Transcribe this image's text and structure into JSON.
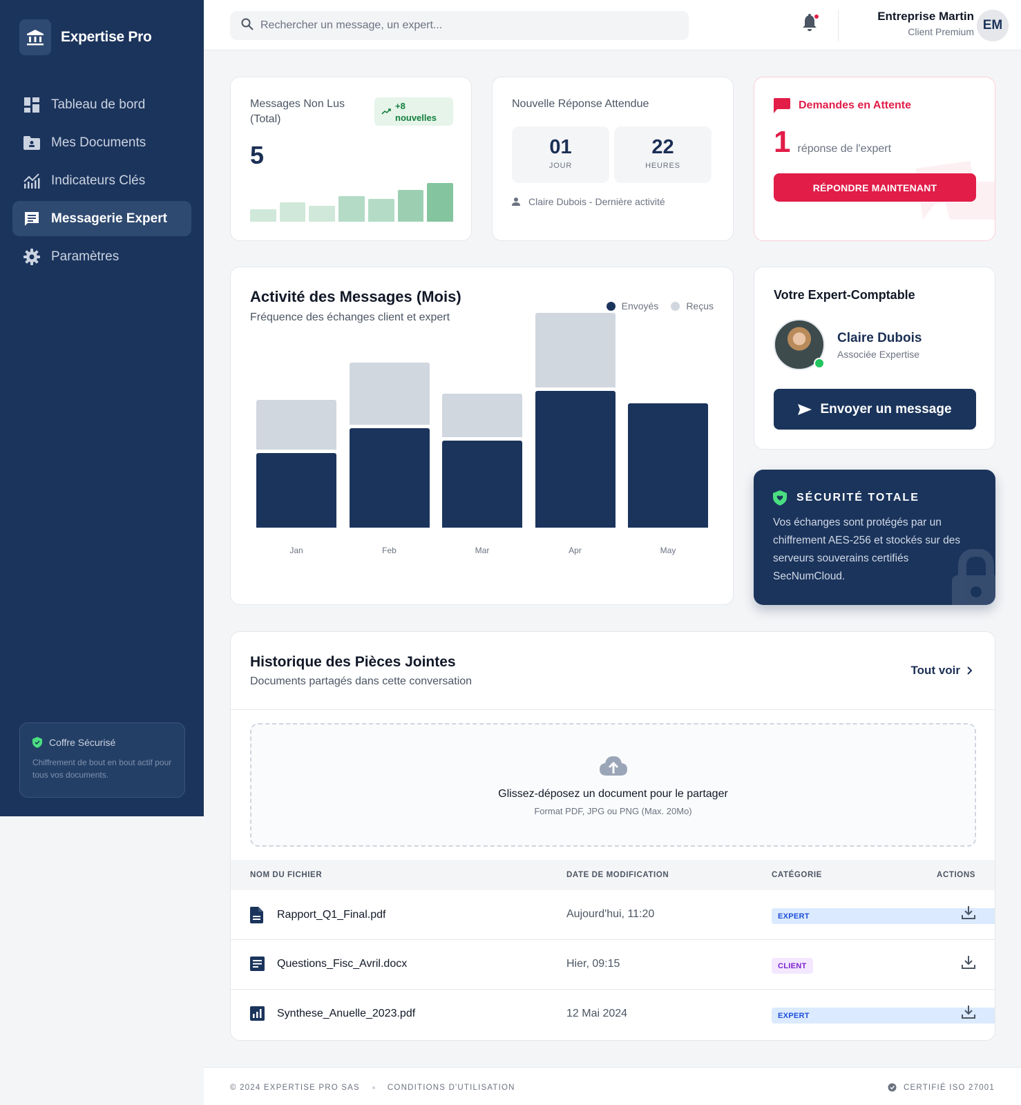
{
  "brand": {
    "name": "Expertise Pro",
    "icon": "bank-icon"
  },
  "sidebar": {
    "items": [
      {
        "label": "Tableau de bord",
        "icon": "dashboard-icon",
        "active": false
      },
      {
        "label": "Mes Documents",
        "icon": "folder-user-icon",
        "active": false
      },
      {
        "label": "Indicateurs Clés",
        "icon": "analytics-icon",
        "active": false
      },
      {
        "label": "Messagerie Expert",
        "icon": "chat-icon",
        "active": true
      },
      {
        "label": "Paramètres",
        "icon": "gear-icon",
        "active": false
      }
    ],
    "vault": {
      "title": "Coffre Sécurisé",
      "text": "Chiffrement de bout en bout actif pour tous vos documents."
    }
  },
  "header": {
    "search_placeholder": "Rechercher un message, un expert...",
    "user_name": "Entreprise Martin",
    "user_role": "Client Premium",
    "avatar_initials": "EM",
    "notification_dot": true
  },
  "cards": {
    "unread": {
      "title": "Messages Non Lus (Total)",
      "badge_value": "+8",
      "badge_label": "nouvelles",
      "value": "5",
      "mini_bars": [
        18,
        28,
        23,
        37,
        33,
        46,
        56
      ],
      "mini_colors": [
        "#cfe8d9",
        "#cfe8d9",
        "#cfe8d9",
        "#b3dbc5",
        "#b3dbc5",
        "#9ccfb2",
        "#84c49f"
      ]
    },
    "response": {
      "title": "Nouvelle Réponse Attendue",
      "days": "01",
      "days_label": "JOUR",
      "hours": "22",
      "hours_label": "HEURES",
      "footer": "Claire Dubois - Dernière activité"
    },
    "pending": {
      "title": "Demandes en Attente",
      "count": "1",
      "count_label": "réponse de l'expert",
      "button": "RÉPONDRE MAINTENANT"
    }
  },
  "chart": {
    "title": "Activité des Messages (Mois)",
    "subtitle": "Fréquence des échanges client et expert",
    "legend": [
      {
        "label": "Envoyés",
        "color": "#1b345c"
      },
      {
        "label": "Reçus",
        "color": "#d1d7df"
      }
    ]
  },
  "chart_data": {
    "type": "bar",
    "stacked": true,
    "title": "Activité des Messages (Mois)",
    "subtitle": "Fréquence des échanges client et expert",
    "categories": [
      "Jan",
      "Feb",
      "Mar",
      "Apr",
      "May"
    ],
    "series": [
      {
        "name": "Envoyés",
        "color": "#1b345c",
        "values": [
          12,
          16,
          14,
          22,
          20
        ]
      },
      {
        "name": "Reçus",
        "color": "#d1d7df",
        "values": [
          8,
          10,
          7,
          12,
          0
        ]
      }
    ],
    "xlabel": "",
    "ylabel": "",
    "ylim": [
      0,
      35
    ],
    "grid": false,
    "legend_position": "top-right"
  },
  "expert": {
    "section_title": "Votre Expert-Comptable",
    "name": "Claire Dubois",
    "role": "Associée Expertise",
    "status": "online",
    "button": "Envoyer un message"
  },
  "security": {
    "title": "SÉCURITÉ TOTALE",
    "text": "Vos échanges sont protégés par un chiffrement AES-256 et stockés sur des serveurs souverains certifiés SecNumCloud."
  },
  "attachments": {
    "title": "Historique des Pièces Jointes",
    "subtitle": "Documents partagés dans cette conversation",
    "see_all": "Tout voir",
    "dropzone": {
      "main": "Glissez-déposez un document pour le partager",
      "sub": "Format PDF, JPG ou PNG (Max. 20Mo)"
    },
    "columns": [
      "NOM DU FICHIER",
      "DATE DE MODIFICATION",
      "CATÉGORIE",
      "ACTIONS"
    ],
    "rows": [
      {
        "name": "Rapport_Q1_Final.pdf",
        "icon": "file-text-icon",
        "date": "Aujourd'hui, 11:20",
        "category": "EXPERT"
      },
      {
        "name": "Questions_Fisc_Avril.docx",
        "icon": "document-icon",
        "date": "Hier, 09:15",
        "category": "CLIENT"
      },
      {
        "name": "Synthese_Anuelle_2023.pdf",
        "icon": "chart-file-icon",
        "date": "12 Mai 2024",
        "category": "EXPERT"
      }
    ]
  },
  "footer": {
    "copyright": "© 2024 EXPERTISE PRO SAS",
    "terms": "CONDITIONS D'UTILISATION",
    "certification": "CERTIFIÉ ISO 27001"
  }
}
